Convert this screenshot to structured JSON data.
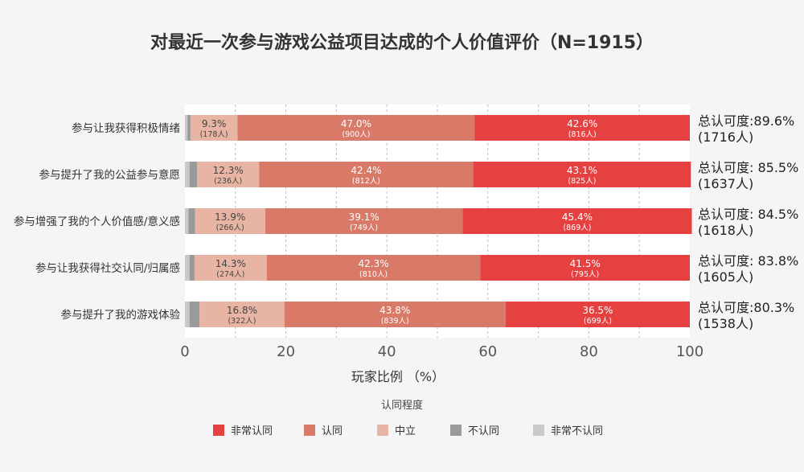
{
  "chart_data": {
    "type": "bar",
    "orientation": "horizontal",
    "stacked": true,
    "title": "对最近一次参与游戏公益项目达成的个人价值评价（N=1915）",
    "xlabel": "玩家比例 （%）",
    "ylabel": "",
    "xlim": [
      0,
      100
    ],
    "xticks": [
      "0",
      "20",
      "40",
      "60",
      "80",
      "100"
    ],
    "grid": "vertical-dashed",
    "legend": {
      "title": "认同程度",
      "position": "bottom-center"
    },
    "categories": [
      "参与让我获得积极情绪",
      "参与提升了我的公益参与意愿",
      "参与增强了我的个人价值感/意义感",
      "参与让我获得社交认同/归属感",
      "参与提升了我的游戏体验"
    ],
    "series": [
      {
        "name": "非常不认同",
        "color": "#c9c9c9",
        "values": [
          0.5,
          0.9,
          0.7,
          0.9,
          0.9
        ],
        "pct_labels": [
          "",
          "",
          "",
          "",
          ""
        ],
        "counts": [
          "",
          "",
          "",
          "",
          ""
        ]
      },
      {
        "name": "不认同",
        "color": "#9a9a9a",
        "values": [
          0.6,
          1.5,
          1.3,
          1.0,
          2.0
        ],
        "pct_labels": [
          "",
          "",
          "",
          "",
          ""
        ],
        "counts": [
          "",
          "",
          "",
          "",
          ""
        ]
      },
      {
        "name": "中立",
        "color": "#e8b5a4",
        "values": [
          9.3,
          12.3,
          13.9,
          14.3,
          16.8
        ],
        "pct_labels": [
          "9.3%",
          "12.3%",
          "13.9%",
          "14.3%",
          "16.8%"
        ],
        "counts": [
          "(178人)",
          "(236人)",
          "(266人)",
          "(274人)",
          "(322人)"
        ]
      },
      {
        "name": "认同",
        "color": "#d97a69",
        "values": [
          47.0,
          42.4,
          39.1,
          42.3,
          43.8
        ],
        "pct_labels": [
          "47.0%",
          "42.4%",
          "39.1%",
          "42.3%",
          "43.8%"
        ],
        "counts": [
          "(900人)",
          "(812人)",
          "(749人)",
          "(810人)",
          "(839人)"
        ]
      },
      {
        "name": "非常认同",
        "color": "#e64141",
        "values": [
          42.6,
          43.1,
          45.4,
          41.5,
          36.5
        ],
        "pct_labels": [
          "42.6%",
          "43.1%",
          "45.4%",
          "41.5%",
          "36.5%"
        ],
        "counts": [
          "(816人)",
          "(825人)",
          "(869人)",
          "(795人)",
          "(699人)"
        ]
      }
    ],
    "summaries": [
      {
        "line1": "总认可度:89.6%",
        "line2": "(1716人)"
      },
      {
        "line1": "总认可度: 85.5%",
        "line2": "(1637人)"
      },
      {
        "line1": "总认可度: 84.5%",
        "line2": "(1618人)"
      },
      {
        "line1": "总认可度: 83.8%",
        "line2": "(1605人)"
      },
      {
        "line1": "总认可度:80.3%",
        "line2": "(1538人)"
      }
    ],
    "legend_order": [
      "非常认同",
      "认同",
      "中立",
      "不认同",
      "非常不认同"
    ]
  }
}
